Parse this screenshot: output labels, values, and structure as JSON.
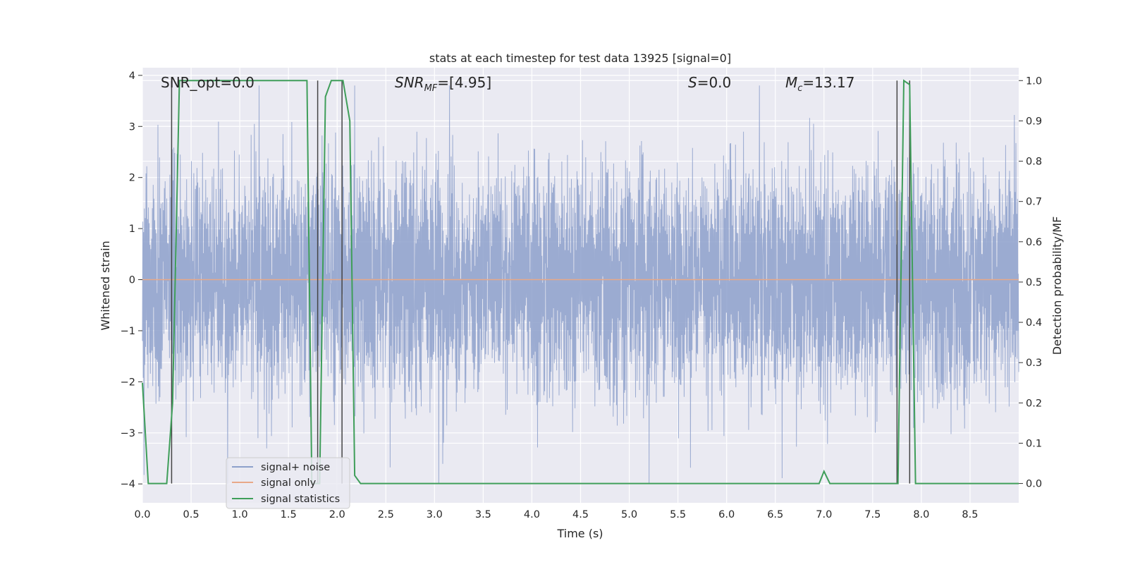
{
  "chart_data": {
    "type": "line",
    "title": "stats at each timestep for test data 13925 [signal=0]",
    "xlabel": "Time (s)",
    "ylabel": "Whitened strain",
    "y2label": "Detection probability/MF",
    "xlim": [
      0,
      9.0
    ],
    "ylim": [
      -4.37,
      4.15
    ],
    "y2lim": [
      -0.048,
      1.032
    ],
    "xticks": [
      "0.0",
      "0.5",
      "1.0",
      "1.5",
      "2.0",
      "2.5",
      "3.0",
      "3.5",
      "4.0",
      "4.5",
      "5.0",
      "5.5",
      "6.0",
      "6.5",
      "7.0",
      "7.5",
      "8.0",
      "8.5"
    ],
    "yticks": [
      "−4",
      "−3",
      "−2",
      "−1",
      "0",
      "1",
      "2",
      "3",
      "4"
    ],
    "y2ticks": [
      "0.0",
      "0.1",
      "0.2",
      "0.3",
      "0.4",
      "0.5",
      "0.6",
      "0.7",
      "0.8",
      "0.9",
      "1.0"
    ],
    "grid": true,
    "legend": {
      "placement": "lower-left"
    },
    "annotations": {
      "snr_opt": "SNR_opt=0.0",
      "snr_mf_base": "SNR",
      "snr_mf_sub": "MF",
      "snr_mf_value": "=[4.95]",
      "s_label": "S",
      "s_value": "=0.0",
      "mc_base": "M",
      "mc_sub": "c",
      "mc_value": "=13.17"
    },
    "series": [
      {
        "name": "signal+ noise",
        "color": "#8DA0CB",
        "kind": "noise",
        "approx_range": [
          -4.0,
          3.8
        ],
        "typical_envelope": [
          -1.8,
          2.1
        ]
      },
      {
        "name": "signal only",
        "color": "#E8A888",
        "kind": "constant",
        "value": 0.0
      },
      {
        "name": "signal statistics",
        "color": "#3F9E5A",
        "axis": "right",
        "x": [
          0.0,
          0.06,
          0.25,
          0.31,
          0.38,
          1.69,
          1.74,
          1.82,
          1.88,
          1.94,
          2.06,
          2.13,
          2.18,
          2.24,
          6.95,
          7.0,
          7.06,
          7.76,
          7.82,
          7.88,
          7.94,
          9.0
        ],
        "y": [
          0.25,
          0.0,
          0.0,
          0.2,
          1.0,
          1.0,
          0.0,
          0.0,
          0.96,
          1.0,
          1.0,
          0.9,
          0.02,
          0.0,
          0.0,
          0.03,
          0.0,
          0.0,
          1.0,
          0.99,
          0.0,
          0.0
        ]
      }
    ],
    "vlines": {
      "color": "#444444",
      "x": [
        0.3,
        1.8,
        2.05,
        7.75,
        7.88
      ],
      "top_value": 1.0
    }
  }
}
